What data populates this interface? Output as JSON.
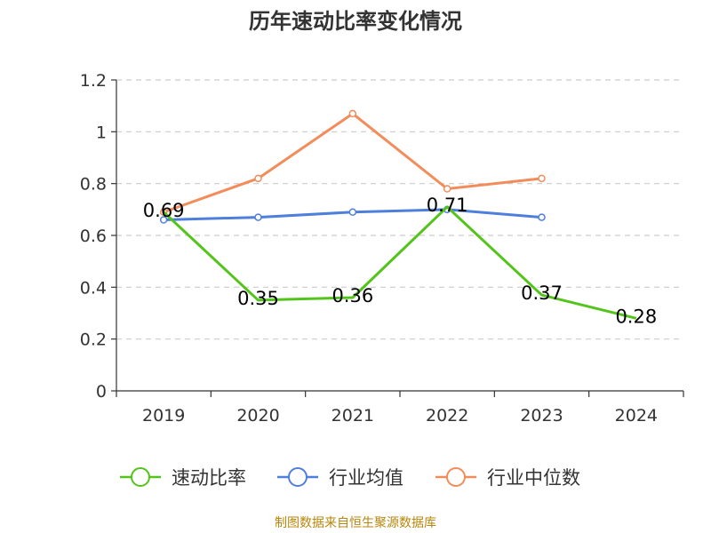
{
  "title": "历年速动比率变化情况",
  "footer": "制图数据来自恒生聚源数据库",
  "colors": {
    "axis": "#333333",
    "grid": "#cccccc",
    "label": "#000000"
  },
  "chart_data": {
    "type": "line",
    "title": "历年速动比率变化情况",
    "categories": [
      "2019",
      "2020",
      "2021",
      "2022",
      "2023",
      "2024"
    ],
    "ylim": [
      0,
      1.2
    ],
    "yticks": [
      "0",
      "0.2",
      "0.4",
      "0.6",
      "0.8",
      "1",
      "1.2"
    ],
    "grid": true,
    "legend_position": "bottom",
    "series": [
      {
        "name": "速动比率",
        "color": "#52c41a",
        "values": [
          0.69,
          0.35,
          0.36,
          0.71,
          0.37,
          0.28
        ],
        "labels": [
          "0.69",
          "0.35",
          "0.36",
          "0.71",
          "0.37",
          "0.28"
        ],
        "markers": false
      },
      {
        "name": "行业均值",
        "color": "#4f7fdc",
        "values": [
          0.66,
          0.67,
          0.69,
          0.7,
          0.67,
          null
        ],
        "markers": true
      },
      {
        "name": "行业中位数",
        "color": "#f28c5a",
        "values": [
          0.69,
          0.82,
          1.07,
          0.78,
          0.82,
          null
        ],
        "markers": true
      }
    ]
  }
}
